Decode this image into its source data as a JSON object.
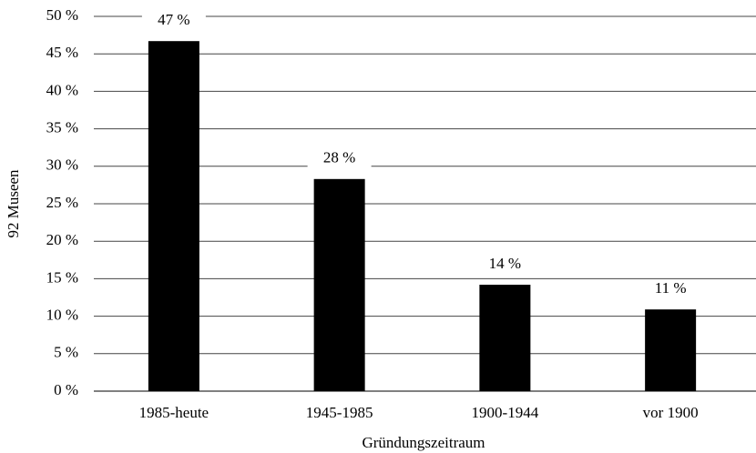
{
  "chart_data": {
    "type": "bar",
    "x_label": "Gründungszeitraum",
    "y_label": "92 Museen",
    "categories": [
      "1985-heute",
      "1945-1985",
      "1900-1944",
      "vor 1900"
    ],
    "values": [
      46.7,
      28.3,
      14.2,
      10.9
    ],
    "value_labels": [
      "47 %",
      "28 %",
      "14 %",
      "11 %"
    ],
    "color": "#000000",
    "ylim": [
      0,
      50
    ],
    "yticks": [
      {
        "value": 0,
        "label": "0 %"
      },
      {
        "value": 5,
        "label": "5 %"
      },
      {
        "value": 10,
        "label": "10 %"
      },
      {
        "value": 15,
        "label": "15 %"
      },
      {
        "value": 20,
        "label": "20 %"
      },
      {
        "value": 25,
        "label": "25 %"
      },
      {
        "value": 30,
        "label": "30 %"
      },
      {
        "value": 35,
        "label": "35 %"
      },
      {
        "value": 40,
        "label": "40 %"
      },
      {
        "value": 45,
        "label": "45 %"
      },
      {
        "value": 50,
        "label": "50 %"
      }
    ],
    "grid": true
  }
}
